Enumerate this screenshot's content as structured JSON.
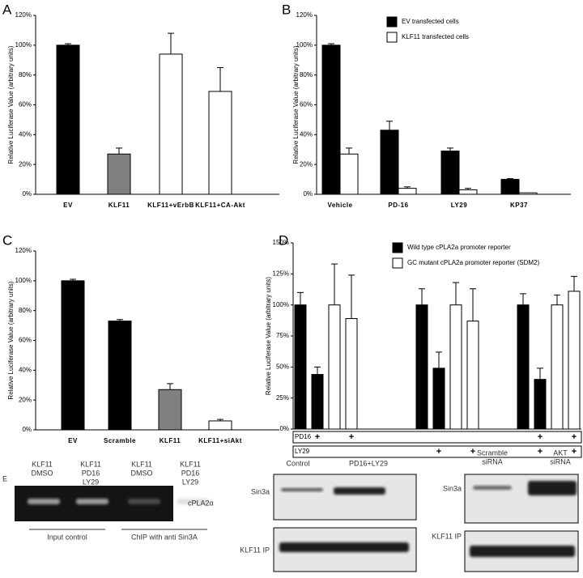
{
  "chart_data": [
    {
      "type": "bar",
      "label": "A",
      "ylabel": "Relative Luciferase Value (arbitrary units)",
      "categories": [
        "EV",
        "KLF11",
        "KLF11+vErbB",
        "KLF11+CA-Akt"
      ],
      "values": [
        100,
        27,
        94,
        69
      ],
      "errors": [
        1,
        4,
        14,
        16
      ],
      "colors": [
        "#000000",
        "#808080",
        "#ffffff",
        "#ffffff"
      ],
      "ylim": [
        0,
        120
      ],
      "yticks": [
        {
          "value": 0,
          "label": "0%"
        },
        {
          "value": 20,
          "label": "20%"
        },
        {
          "value": 40,
          "label": "40%"
        },
        {
          "value": 60,
          "label": "60%"
        },
        {
          "value": 80,
          "label": "80%"
        },
        {
          "value": 100,
          "label": "100%"
        },
        {
          "value": 120,
          "label": "120%"
        }
      ]
    },
    {
      "type": "grouped_bar",
      "label": "B",
      "ylabel": "Relative Luciferase Value (arbitrary units)",
      "categories": [
        "Vehicle",
        "PD-16",
        "LY29",
        "KP37"
      ],
      "series": [
        {
          "name": "EV transfected cells",
          "color": "#000000",
          "values": [
            100,
            43,
            29,
            10
          ],
          "errors": [
            1,
            6,
            2,
            0.5
          ]
        },
        {
          "name": "KLF11 transfected cells",
          "color": "#ffffff",
          "values": [
            27,
            4,
            3,
            1
          ],
          "errors": [
            4,
            1,
            1,
            0
          ]
        }
      ],
      "legend": "upper right",
      "ylim": [
        0,
        120
      ],
      "yticks": [
        {
          "value": 0,
          "label": "0%"
        },
        {
          "value": 20,
          "label": "20%"
        },
        {
          "value": 40,
          "label": "40%"
        },
        {
          "value": 60,
          "label": "60%"
        },
        {
          "value": 80,
          "label": "80%"
        },
        {
          "value": 100,
          "label": "100%"
        },
        {
          "value": 120,
          "label": "120%"
        }
      ]
    },
    {
      "type": "bar",
      "label": "C",
      "ylabel": "Relative Luciferase Value (arbitrary units)",
      "categories": [
        "EV",
        "Scramble",
        "KLF11",
        "KLF11+siAkt"
      ],
      "values": [
        100,
        73,
        27,
        6
      ],
      "errors": [
        1,
        1,
        4,
        1
      ],
      "colors": [
        "#000000",
        "#000000",
        "#808080",
        "#ffffff"
      ],
      "ylim": [
        0,
        120
      ],
      "yticks": [
        {
          "value": 0,
          "label": "0%"
        },
        {
          "value": 20,
          "label": "20%"
        },
        {
          "value": 40,
          "label": "40%"
        },
        {
          "value": 60,
          "label": "60%"
        },
        {
          "value": 80,
          "label": "80%"
        },
        {
          "value": 100,
          "label": "100%"
        },
        {
          "value": 120,
          "label": "120%"
        }
      ]
    },
    {
      "type": "paired_bar",
      "label": "D",
      "ylabel": "Relative Luciferase Value (arbitrary units)",
      "series": [
        {
          "name": "Wild type cPLA2a promoter reporter",
          "color": "#000000",
          "values": [
            100,
            44,
            100,
            49,
            100,
            40
          ],
          "errors": [
            10,
            6,
            13,
            13,
            9,
            9
          ]
        },
        {
          "name": "GC mutant cPLA2a promoter reporter (SDM2)",
          "color": "#ffffff",
          "values": [
            100,
            89,
            100,
            87,
            100,
            111
          ],
          "errors": [
            33,
            35,
            18,
            26,
            8,
            12
          ]
        }
      ],
      "legend": "upper left",
      "ylim": [
        0,
        150
      ],
      "yticks": [
        {
          "value": 0,
          "label": "0%"
        },
        {
          "value": 25,
          "label": "25%"
        },
        {
          "value": 50,
          "label": "50%"
        },
        {
          "value": 75,
          "label": "75%"
        },
        {
          "value": 100,
          "label": "100%"
        },
        {
          "value": 125,
          "label": "125%"
        },
        {
          "value": 150,
          "label": "150%"
        }
      ],
      "treatments": [
        {
          "name": "PD16",
          "marks": [
            null,
            "+",
            null,
            "+",
            null,
            null,
            null,
            null,
            null,
            "+",
            null,
            "+"
          ]
        },
        {
          "name": "LY29",
          "marks": [
            null,
            null,
            null,
            null,
            null,
            "+",
            null,
            "+",
            null,
            "+",
            null,
            "+"
          ]
        }
      ]
    }
  ],
  "blots": {
    "label": "E",
    "gel": {
      "lanes": [
        [
          "KLF11",
          "DMSO"
        ],
        [
          "KLF11",
          "PD16",
          "LY29"
        ],
        [
          "KLF11",
          "DMSO"
        ],
        [
          "KLF11",
          "PD16",
          "LY29"
        ]
      ],
      "band": "cPLA2α",
      "groups": [
        "Input control",
        "ChIP with anti Sin3A"
      ]
    },
    "western1": {
      "lanes": [
        "Control",
        "PD16+LY29"
      ],
      "rows": [
        "Sin3a",
        "KLF11 IP"
      ]
    },
    "western2": {
      "lanes": [
        [
          "Scramble",
          "siRNA"
        ],
        [
          "AKT",
          "siRNA"
        ]
      ],
      "rows": [
        "Sin3a",
        "KLF11 IP"
      ]
    }
  }
}
